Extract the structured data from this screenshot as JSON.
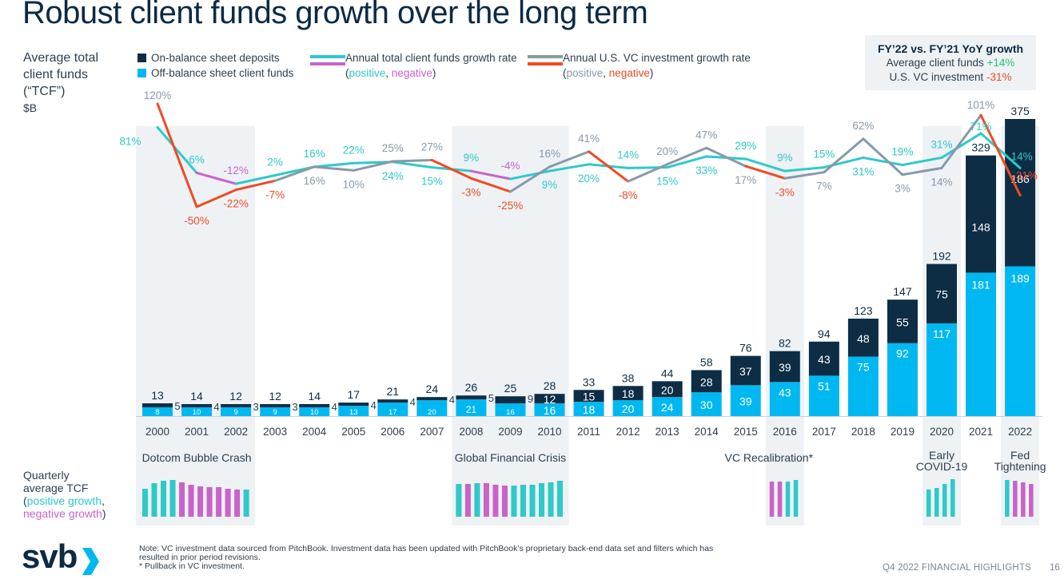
{
  "title": "Robust client funds growth over the long term",
  "y_axis_label": {
    "line1": "Average total",
    "line2": "client funds",
    "line3": "(“TCF”)",
    "unit": "$B"
  },
  "legend": {
    "on_balance": "On-balance sheet deposits",
    "off_balance": "Off-balance sheet client funds",
    "tcf_rate": "Annual total client funds growth rate",
    "vc_rate": "Annual U.S. VC investment growth rate",
    "paren_open": "(",
    "positive": "positive",
    "comma": ", ",
    "negative": "negative",
    "paren_close": ")"
  },
  "callout": {
    "heading": "FY’22 vs. FY’21 YoY growth",
    "line1_label": "Average client funds ",
    "line1_value": "+14%",
    "line2_label": "U.S. VC investment ",
    "line2_value": "-31%"
  },
  "quarterly_label": {
    "line1": "Quarterly",
    "line2": "average TCF",
    "positive": "positive growth",
    "negative": "negative growth"
  },
  "events": [
    {
      "label": "Dotcom Bubble Crash",
      "years": [
        2000,
        2002
      ],
      "quarters": [
        "pos",
        "pos",
        "pos",
        "pos",
        "neg",
        "neg",
        "neg",
        "neg",
        "neg",
        "neg",
        "neg",
        "pos"
      ],
      "q_levels": [
        35,
        42,
        45,
        46,
        43,
        40,
        38,
        37,
        37,
        35,
        34,
        34
      ]
    },
    {
      "label": "Global Financial Crisis",
      "years": [
        2008,
        2010
      ],
      "quarters": [
        "pos",
        "neg",
        "pos",
        "neg",
        "neg",
        "neg",
        "pos",
        "pos",
        "pos",
        "pos",
        "pos",
        "pos"
      ],
      "q_levels": [
        41,
        41,
        42,
        42,
        40,
        39,
        39,
        40,
        40,
        42,
        43,
        45
      ]
    },
    {
      "label": "VC Recalibration*",
      "years": [
        2016,
        2016
      ],
      "quarters": [
        "neg",
        "neg",
        "pos",
        "pos"
      ],
      "q_levels": [
        44,
        44,
        44,
        46
      ]
    },
    {
      "label": "Early COVID-19",
      "years": [
        2020,
        2020
      ],
      "quarters": [
        "pos",
        "pos",
        "pos",
        "pos"
      ],
      "q_levels": [
        34,
        36,
        41,
        47
      ]
    },
    {
      "label": "Fed Tightening",
      "years": [
        2022,
        2022
      ],
      "quarters": [
        "pos",
        "neg",
        "neg",
        "neg"
      ],
      "q_levels": [
        46,
        45,
        43,
        41
      ]
    }
  ],
  "footer": {
    "logo": "svb",
    "note1": "Note: VC investment data sourced from PitchBook.  Investment data has been updated with PitchBook’s proprietary back-end data set and filters which has",
    "note2": "resulted in prior period revisions.",
    "note3": "* Pullback in VC investment.",
    "highlights": "Q4 2022 FINANCIAL HIGHLIGHTS",
    "page": "16"
  },
  "colors": {
    "on_balance": "#0d2d45",
    "off_balance": "#00b8f1",
    "tcf_positive": "#2fc9c9",
    "tcf_negative": "#c963c9",
    "vc_positive": "#8899ab",
    "vc_negative": "#f04a23",
    "band": "#eef2f5"
  },
  "chart_data": {
    "type": "bar",
    "title": "Robust client funds growth over the long term",
    "ylabel": "Average total client funds (TCF) $B",
    "categories": [
      "2000",
      "2001",
      "2002",
      "2003",
      "2004",
      "2005",
      "2006",
      "2007",
      "2008",
      "2009",
      "2010",
      "2011",
      "2012",
      "2013",
      "2014",
      "2015",
      "2016",
      "2017",
      "2018",
      "2019",
      "2020",
      "2021",
      "2022"
    ],
    "totals": [
      13,
      14,
      12,
      12,
      14,
      17,
      21,
      24,
      26,
      25,
      28,
      33,
      38,
      44,
      58,
      76,
      82,
      94,
      123,
      147,
      192,
      329,
      375
    ],
    "series": [
      {
        "name": "Off-balance sheet client funds",
        "values": [
          8,
          10,
          9,
          9,
          10,
          13,
          17,
          20,
          21,
          16,
          16,
          18,
          20,
          24,
          30,
          39,
          43,
          51,
          75,
          92,
          117,
          181,
          189
        ]
      },
      {
        "name": "On-balance sheet deposits",
        "values": [
          5,
          4,
          3,
          3,
          4,
          4,
          4,
          4,
          5,
          9,
          12,
          15,
          18,
          20,
          28,
          37,
          39,
          43,
          48,
          55,
          75,
          148,
          186
        ]
      }
    ],
    "lines": [
      {
        "name": "Annual total client funds growth rate",
        "unit": "%",
        "values": [
          81,
          6,
          -12,
          2,
          16,
          22,
          24,
          15,
          9,
          -4,
          9,
          20,
          14,
          15,
          33,
          29,
          9,
          15,
          31,
          19,
          31,
          71,
          14
        ]
      },
      {
        "name": "Annual U.S. VC investment growth rate",
        "unit": "%",
        "values": [
          120,
          -50,
          -22,
          -7,
          16,
          10,
          25,
          27,
          -3,
          -25,
          16,
          41,
          -8,
          20,
          47,
          17,
          -3,
          7,
          62,
          3,
          14,
          101,
          -31
        ]
      }
    ],
    "ylim": [
      0,
      375
    ],
    "shaded_periods": [
      "2000-2002",
      "2008-2010",
      "2016",
      "2020",
      "2022"
    ],
    "legend_position": "top"
  }
}
